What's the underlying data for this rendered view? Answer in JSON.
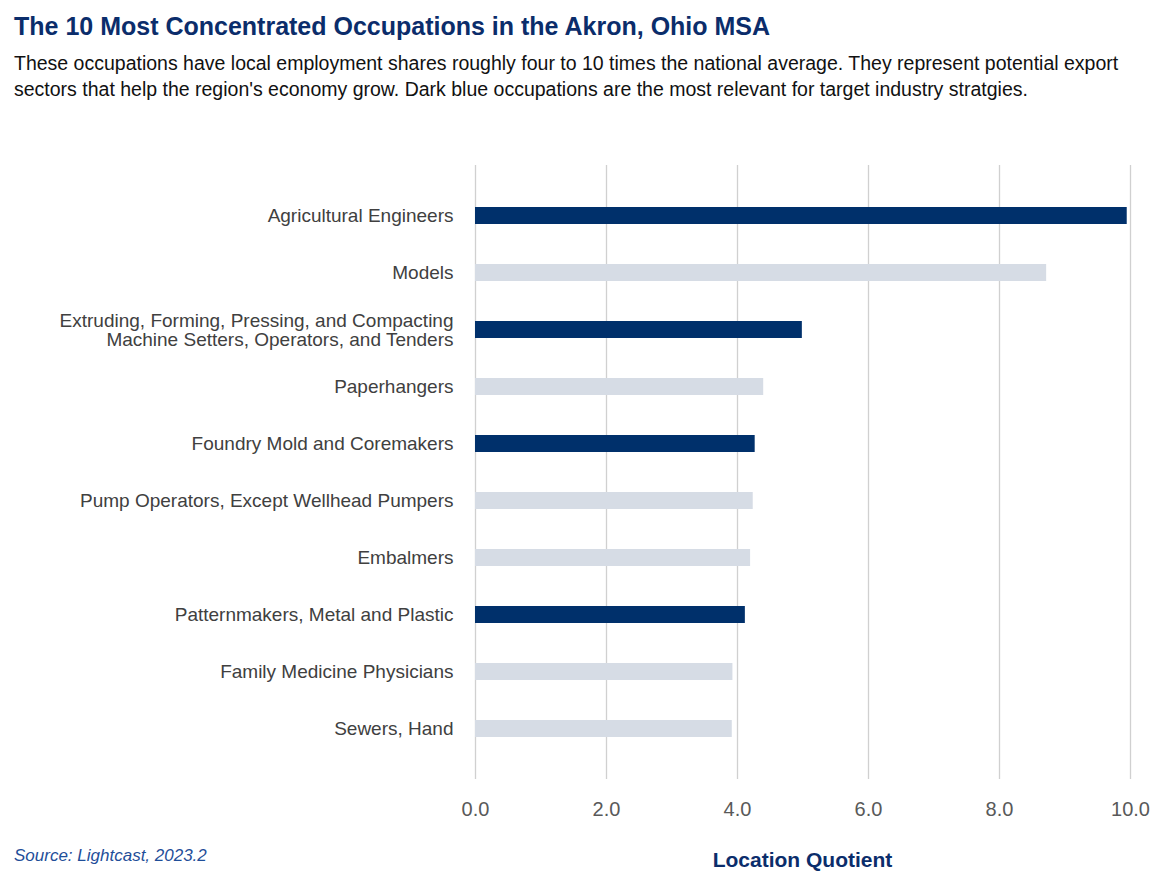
{
  "chart_data": {
    "type": "bar",
    "orientation": "horizontal",
    "title": "The 10 Most Concentrated Occupations in the Akron, Ohio MSA",
    "subtitle": "These occupations have local employment shares roughly four to 10 times the national average. They represent potential export sectors that help the region's economy grow. Dark blue occupations are the most relevant for target industry stratgies.",
    "source": "Source: Lightcast, 2023.2",
    "x_label": "Location Quotient",
    "categories": [
      "Agricultural Engineers",
      "Models",
      "Extruding, Forming, Pressing, and Compacting\nMachine Setters, Operators, and Tenders",
      "Paperhangers",
      "Foundry Mold and Coremakers",
      "Pump Operators, Except Wellhead Pumpers",
      "Embalmers",
      "Patternmakers, Metal and Plastic",
      "Family Medicine Physicians",
      "Sewers, Hand"
    ],
    "values": [
      9.95,
      8.72,
      4.99,
      4.4,
      4.27,
      4.24,
      4.2,
      4.12,
      3.93,
      3.92
    ],
    "colors": [
      "#00306b",
      "#d6dce5",
      "#00306b",
      "#d6dce5",
      "#00306b",
      "#d6dce5",
      "#d6dce5",
      "#00306b",
      "#d6dce5",
      "#d6dce5"
    ],
    "xlim": [
      0,
      10
    ],
    "xticks": [
      {
        "value": 0,
        "label": "0.0"
      },
      {
        "value": 2,
        "label": "2.0"
      },
      {
        "value": 4,
        "label": "4.0"
      },
      {
        "value": 6,
        "label": "6.0"
      },
      {
        "value": 8,
        "label": "8.0"
      },
      {
        "value": 10,
        "label": "10.0"
      }
    ],
    "grid": true
  }
}
